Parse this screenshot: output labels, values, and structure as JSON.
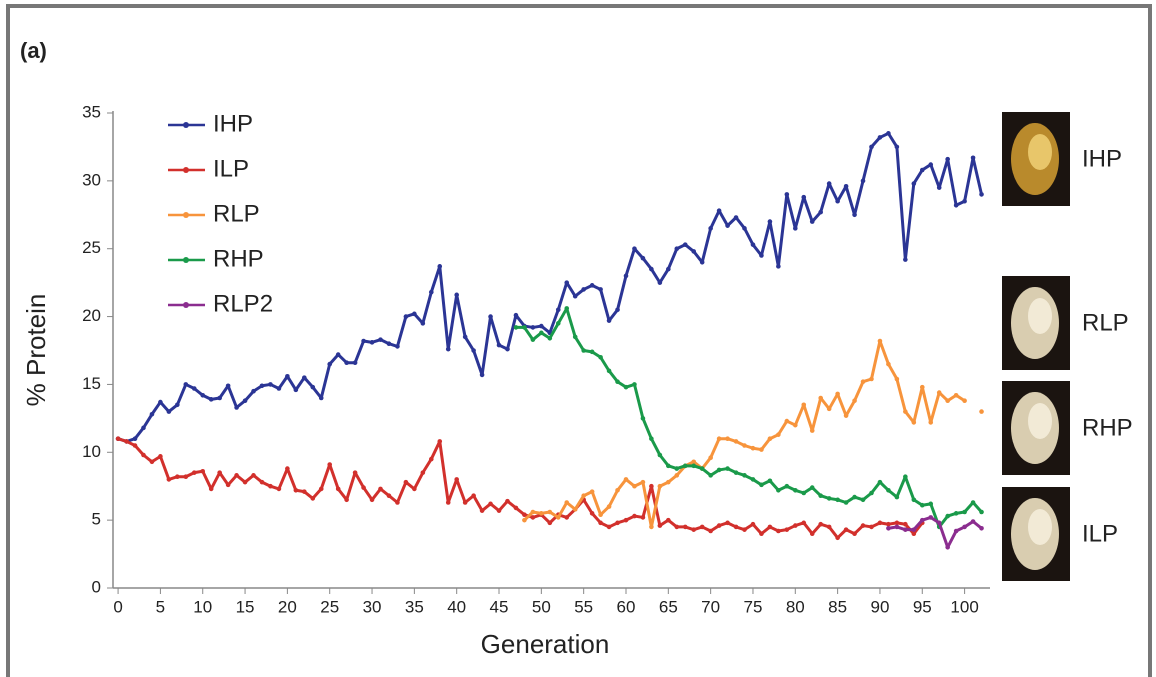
{
  "chart_data": {
    "type": "line",
    "panel_label": "(a)",
    "x_label": "Generation",
    "y_label": "% Protein",
    "xlim": [
      -0.6,
      103
    ],
    "ylim": [
      0,
      35
    ],
    "xticks": [
      0,
      5,
      10,
      15,
      20,
      25,
      30,
      35,
      40,
      45,
      50,
      55,
      60,
      65,
      70,
      75,
      80,
      85,
      90,
      95,
      100
    ],
    "yticks": [
      0,
      5,
      10,
      15,
      20,
      25,
      30,
      35
    ],
    "grid": false,
    "legend": "upper left",
    "x": [
      0,
      1,
      2,
      3,
      4,
      5,
      6,
      7,
      8,
      9,
      10,
      11,
      12,
      13,
      14,
      15,
      16,
      17,
      18,
      19,
      20,
      21,
      22,
      23,
      24,
      25,
      26,
      27,
      28,
      29,
      30,
      31,
      32,
      33,
      34,
      35,
      36,
      37,
      38,
      39,
      40,
      41,
      42,
      43,
      44,
      45,
      46,
      47,
      48,
      49,
      50,
      51,
      52,
      53,
      54,
      55,
      56,
      57,
      58,
      59,
      60,
      61,
      62,
      63,
      64,
      65,
      66,
      67,
      68,
      69,
      70,
      71,
      72,
      73,
      74,
      75,
      76,
      77,
      78,
      79,
      80,
      81,
      82,
      83,
      84,
      85,
      86,
      87,
      88,
      89,
      90,
      91,
      92,
      93,
      94,
      95,
      96,
      97,
      98,
      99,
      100,
      101,
      102
    ],
    "series": [
      {
        "name": "IHP",
        "color": "#2b3595",
        "values": [
          11,
          10.8,
          11,
          11.8,
          12.8,
          13.7,
          13,
          13.5,
          15,
          14.7,
          14.2,
          13.9,
          14,
          14.9,
          13.3,
          13.8,
          14.5,
          14.9,
          15,
          14.7,
          15.6,
          14.6,
          15.5,
          14.8,
          14,
          16.5,
          17.2,
          16.6,
          16.6,
          18.2,
          18.1,
          18.3,
          18,
          17.8,
          20,
          20.2,
          19.5,
          21.8,
          23.7,
          17.6,
          21.6,
          18.5,
          17.5,
          15.7,
          20,
          17.9,
          17.6,
          20.1,
          19.3,
          19.2,
          19.3,
          18.8,
          20.5,
          22.5,
          21.5,
          22,
          22.3,
          22,
          19.7,
          20.5,
          23,
          25,
          24.3,
          23.5,
          22.5,
          23.5,
          25,
          25.3,
          24.8,
          24,
          26.5,
          27.8,
          26.7,
          27.3,
          26.5,
          25.3,
          24.5,
          27,
          23.7,
          29,
          26.5,
          28.8,
          27,
          27.7,
          29.8,
          28.5,
          29.6,
          27.5,
          30,
          32.5,
          33.2,
          33.5,
          32.5,
          24.2,
          29.8,
          30.8,
          31.2,
          29.5,
          31.6,
          28.2,
          28.5,
          31.7,
          29
        ]
      },
      {
        "name": "ILP",
        "color": "#d2302c",
        "values": [
          11,
          10.8,
          10.5,
          9.8,
          9.3,
          9.7,
          8,
          8.2,
          8.2,
          8.5,
          8.6,
          7.3,
          8.5,
          7.6,
          8.3,
          7.8,
          8.3,
          7.8,
          7.5,
          7.3,
          8.8,
          7.2,
          7.1,
          6.6,
          7.3,
          9.1,
          7.3,
          6.5,
          8.5,
          7.4,
          6.5,
          7.3,
          6.8,
          6.3,
          7.8,
          7.3,
          8.5,
          9.5,
          10.8,
          6.3,
          8,
          6.3,
          6.8,
          5.7,
          6.2,
          5.7,
          6.4,
          5.9,
          5.4,
          5.2,
          5.4,
          4.8,
          5.4,
          5.2,
          5.8,
          6.5,
          5.5,
          4.8,
          4.5,
          4.8,
          5,
          5.3,
          5.2,
          7.5,
          4.6,
          5,
          4.5,
          4.5,
          4.3,
          4.5,
          4.2,
          4.6,
          4.8,
          4.5,
          4.3,
          4.7,
          4,
          4.5,
          4.2,
          4.3,
          4.6,
          4.8,
          4,
          4.7,
          4.5,
          3.7,
          4.3,
          4,
          4.6,
          4.5,
          4.8,
          4.7,
          4.8,
          4.7,
          4,
          4.8,
          null,
          null,
          null,
          null,
          null,
          null,
          null
        ]
      },
      {
        "name": "RLP",
        "color": "#f7943c",
        "values": [
          null,
          null,
          null,
          null,
          null,
          null,
          null,
          null,
          null,
          null,
          null,
          null,
          null,
          null,
          null,
          null,
          null,
          null,
          null,
          null,
          null,
          null,
          null,
          null,
          null,
          null,
          null,
          null,
          null,
          null,
          null,
          null,
          null,
          null,
          null,
          null,
          null,
          null,
          null,
          null,
          null,
          null,
          null,
          null,
          null,
          null,
          null,
          null,
          5,
          5.6,
          5.5,
          5.6,
          5.2,
          6.3,
          5.8,
          6.8,
          7.1,
          5.4,
          6,
          7.2,
          8,
          7.5,
          7.8,
          4.5,
          7.5,
          7.8,
          8.3,
          9,
          9.3,
          8.8,
          9.6,
          11,
          11,
          10.8,
          10.5,
          10.3,
          10.2,
          11,
          11.3,
          12.3,
          12,
          13.5,
          11.6,
          14,
          13.2,
          14.3,
          12.7,
          13.8,
          15.2,
          15.4,
          18.2,
          16.5,
          15.4,
          13,
          12.2,
          14.8,
          12.2,
          14.4,
          13.8,
          14.2,
          13.8,
          null,
          13
        ]
      },
      {
        "name": "RHP",
        "color": "#1a9a4a",
        "values": [
          null,
          null,
          null,
          null,
          null,
          null,
          null,
          null,
          null,
          null,
          null,
          null,
          null,
          null,
          null,
          null,
          null,
          null,
          null,
          null,
          null,
          null,
          null,
          null,
          null,
          null,
          null,
          null,
          null,
          null,
          null,
          null,
          null,
          null,
          null,
          null,
          null,
          null,
          null,
          null,
          null,
          null,
          null,
          null,
          null,
          null,
          null,
          19.2,
          19.2,
          18.3,
          18.8,
          18.4,
          19.5,
          20.6,
          18.5,
          17.5,
          17.4,
          17,
          16,
          15.2,
          14.8,
          15,
          12.5,
          11,
          9.8,
          9,
          8.8,
          9,
          9,
          8.8,
          8.3,
          8.7,
          8.8,
          8.5,
          8.3,
          8,
          7.6,
          7.9,
          7.2,
          7.5,
          7.2,
          7,
          7.4,
          6.8,
          6.6,
          6.5,
          6.3,
          6.7,
          6.5,
          7,
          7.8,
          7.2,
          6.7,
          8.2,
          6.5,
          6.1,
          6.2,
          4.5,
          5.3,
          5.5,
          5.6,
          6.3,
          5.6
        ]
      },
      {
        "name": "RLP2",
        "color": "#8b2d8f",
        "values": [
          null,
          null,
          null,
          null,
          null,
          null,
          null,
          null,
          null,
          null,
          null,
          null,
          null,
          null,
          null,
          null,
          null,
          null,
          null,
          null,
          null,
          null,
          null,
          null,
          null,
          null,
          null,
          null,
          null,
          null,
          null,
          null,
          null,
          null,
          null,
          null,
          null,
          null,
          null,
          null,
          null,
          null,
          null,
          null,
          null,
          null,
          null,
          null,
          null,
          null,
          null,
          null,
          null,
          null,
          null,
          null,
          null,
          null,
          null,
          null,
          null,
          null,
          null,
          null,
          null,
          null,
          null,
          null,
          null,
          null,
          null,
          null,
          null,
          null,
          null,
          null,
          null,
          null,
          null,
          null,
          null,
          null,
          null,
          null,
          null,
          null,
          null,
          null,
          null,
          null,
          null,
          4.4,
          4.5,
          4.3,
          4.3,
          5,
          5.2,
          4.8,
          3,
          4.2,
          4.5,
          4.9,
          4.4
        ]
      }
    ],
    "photos": [
      {
        "label": "IHP"
      },
      {
        "label": "RLP"
      },
      {
        "label": "RHP"
      },
      {
        "label": "ILP"
      }
    ]
  }
}
